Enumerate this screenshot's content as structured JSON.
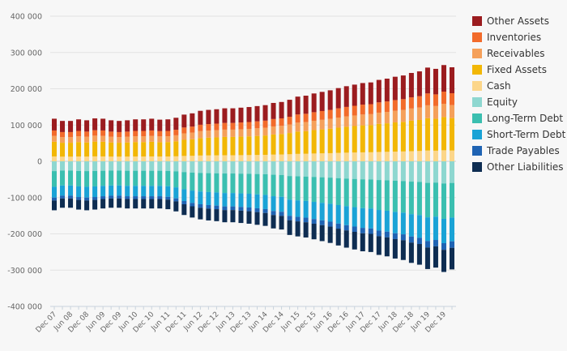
{
  "chart_data": {
    "type": "bar",
    "stacked": true,
    "title": "",
    "xlabel": "",
    "ylabel": "",
    "ylim": [
      -400000,
      400000
    ],
    "y_ticks": [
      400000,
      300000,
      200000,
      100000,
      0,
      -100000,
      -200000,
      -300000,
      -400000
    ],
    "y_tick_labels": [
      "400 000",
      "300 000",
      "200 000",
      "100 000",
      "0",
      "-100 000",
      "-200 000",
      "-300 000",
      "-400 000"
    ],
    "grid": "horizontal",
    "legend_position": "right",
    "categories": [
      "Dec 07",
      "Mar 08",
      "Jun 08",
      "Sep 08",
      "Dec 08",
      "Mar 09",
      "Jun 09",
      "Sep 09",
      "Dec 09",
      "Mar 10",
      "Jun 10",
      "Sep 10",
      "Dec 10",
      "Mar 11",
      "Jun 11",
      "Sep 11",
      "Dec 11",
      "Mar 12",
      "Jun 12",
      "Sep 12",
      "Dec 12",
      "Mar 13",
      "Jun 13",
      "Sep 13",
      "Dec 13",
      "Mar 14",
      "Jun 14",
      "Sep 14",
      "Dec 14",
      "Mar 15",
      "Jun 15",
      "Sep 15",
      "Dec 15",
      "Mar 16",
      "Jun 16",
      "Sep 16",
      "Dec 16",
      "Mar 17",
      "Jun 17",
      "Sep 17",
      "Dec 17",
      "Mar 18",
      "Jun 18",
      "Sep 18",
      "Dec 18",
      "Mar 19",
      "Jun 19",
      "Sep 19",
      "Dec 19",
      "Mar 20"
    ],
    "x_tick_labels": [
      "Dec 07",
      "Jun 08",
      "Dec 08",
      "Jun 09",
      "Dec 09",
      "Jun 10",
      "Dec 10",
      "Jun 11",
      "Dec 11",
      "Jun 12",
      "Dec 12",
      "Jun 13",
      "Dec 13",
      "Jun 14",
      "Dec 14",
      "Jun 15",
      "Dec 15",
      "Jun 16",
      "Dec 16",
      "Jun 17",
      "Dec 17",
      "Jun 18",
      "Dec 18",
      "Jun 19",
      "Dec 19"
    ],
    "asset_totals": [
      135000,
      128000,
      128000,
      133000,
      130000,
      136000,
      135000,
      130000,
      128000,
      130000,
      133000,
      133000,
      135000,
      132000,
      133000,
      138000,
      148000,
      152000,
      160000,
      163000,
      165000,
      168000,
      168000,
      170000,
      172000,
      175000,
      178000,
      185000,
      188000,
      195000,
      205000,
      208000,
      215000,
      220000,
      225000,
      232000,
      238000,
      243000,
      248000,
      250000,
      258000,
      262000,
      268000,
      272000,
      280000,
      285000,
      297000,
      293000,
      305000,
      298000
    ],
    "liability_totals": [
      -135000,
      -128000,
      -128000,
      -133000,
      -135000,
      -133000,
      -130000,
      -128000,
      -128000,
      -130000,
      -130000,
      -130000,
      -130000,
      -130000,
      -132000,
      -138000,
      -148000,
      -155000,
      -160000,
      -163000,
      -165000,
      -168000,
      -168000,
      -170000,
      -172000,
      -175000,
      -178000,
      -185000,
      -188000,
      -203000,
      -207000,
      -210000,
      -215000,
      -220000,
      -225000,
      -232000,
      -238000,
      -243000,
      -248000,
      -250000,
      -258000,
      -262000,
      -268000,
      -272000,
      -280000,
      -285000,
      -297000,
      -293000,
      -305000,
      -298000
    ],
    "series": [
      {
        "name": "Other Assets",
        "side": "asset",
        "color": "#9b1c1f",
        "share": 0.24
      },
      {
        "name": "Inventories",
        "side": "asset",
        "color": "#f26b2b",
        "share": 0.11
      },
      {
        "name": "Receivables",
        "side": "asset",
        "color": "#f5a05a",
        "share": 0.12
      },
      {
        "name": "Fixed Assets",
        "side": "asset",
        "color": "#f2b705",
        "share": 0.3
      },
      {
        "name": "Cash",
        "side": "asset",
        "color": "#fcd68a",
        "share": 0.1
      },
      {
        "name": "Equity",
        "side": "liability",
        "color": "#8ed7d0",
        "share": 0.2
      },
      {
        "name": "Long-Term Debt",
        "side": "liability",
        "color": "#3bbfb0",
        "share": 0.32
      },
      {
        "name": "Short-Term Debt",
        "side": "liability",
        "color": "#1aa3d6",
        "share": 0.22
      },
      {
        "name": "Trade Payables",
        "side": "liability",
        "color": "#1f63b3",
        "share": 0.06
      },
      {
        "name": "Other Liabilities",
        "side": "liability",
        "color": "#0e2d52",
        "share": 0.2
      }
    ]
  }
}
